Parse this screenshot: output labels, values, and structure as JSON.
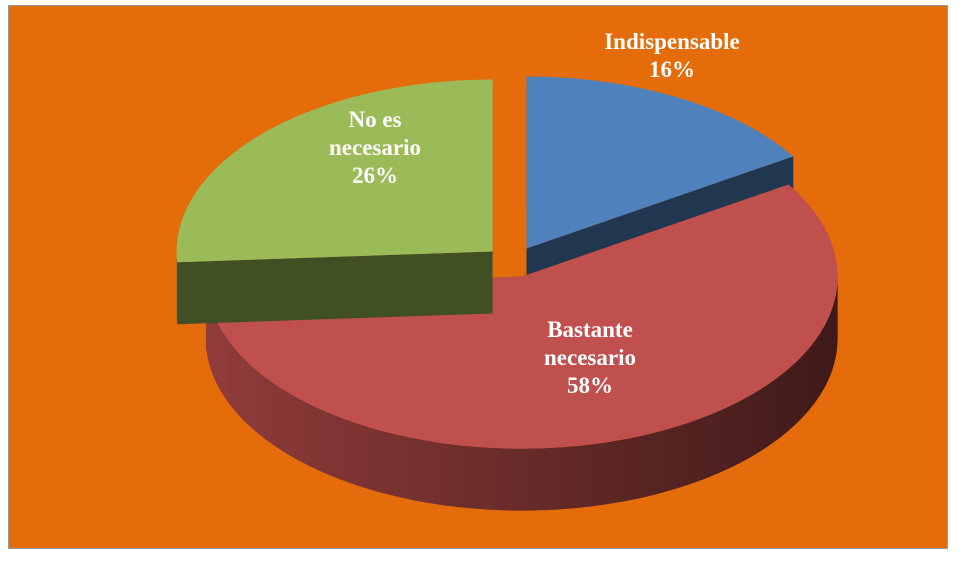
{
  "chart_data": {
    "type": "pie",
    "categories": [
      "Indispensable",
      "Bastante necesario",
      "No es necesario"
    ],
    "values": [
      16,
      58,
      26
    ],
    "value_labels": [
      "16%",
      "58%",
      "26%"
    ],
    "colors": [
      "#4f81bd",
      "#c0504d",
      "#9bbb59"
    ]
  }
}
